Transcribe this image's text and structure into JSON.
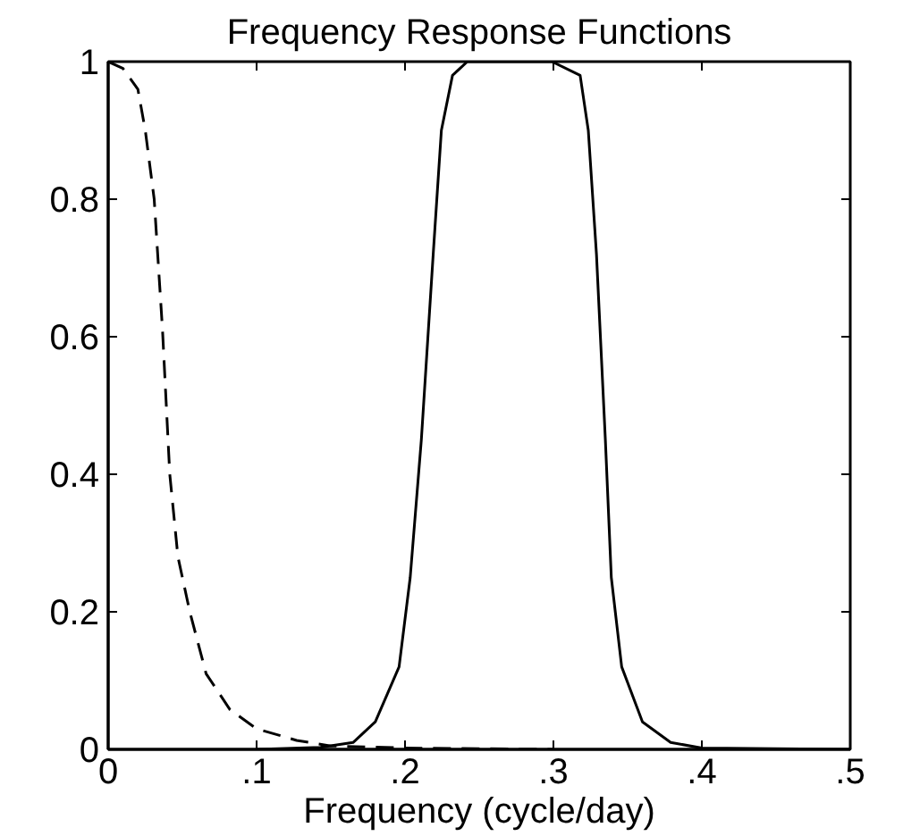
{
  "chart_data": {
    "type": "line",
    "title": "Frequency Response Functions",
    "xlabel": "Frequency (cycle/day)",
    "xlim": [
      0,
      0.5
    ],
    "ylim": [
      0,
      1
    ],
    "xticks": [
      0,
      {
        "value": 0.1,
        "label": ".1"
      },
      {
        "value": 0.2,
        "label": ".2"
      },
      {
        "value": 0.3,
        "label": ".3"
      },
      {
        "value": 0.4,
        "label": ".4"
      },
      {
        "value": 0.5,
        "label": ".5"
      }
    ],
    "yticks": [
      0,
      0.2,
      0.4,
      0.6,
      0.8,
      1
    ],
    "grid": false,
    "series": [
      {
        "color": "#000000",
        "line_style": "dashed",
        "x": [
          0,
          0.01,
          0.02,
          0.025,
          0.031,
          0.0366,
          0.0415,
          0.047,
          0.055,
          0.066,
          0.082,
          0.1,
          0.127,
          0.15,
          0.2,
          0.25,
          0.3
        ],
        "values": [
          1,
          0.99,
          0.96,
          0.9,
          0.8,
          0.61,
          0.4,
          0.28,
          0.2,
          0.11,
          0.058,
          0.03,
          0.013,
          0.005,
          0.002,
          0.001,
          0
        ]
      },
      {
        "color": "#000000",
        "line_style": "solid",
        "x": [
          0.1,
          0.143,
          0.165,
          0.18,
          0.196,
          0.2035,
          0.211,
          0.219,
          0.2245,
          0.232,
          0.242,
          0.299,
          0.318,
          0.3235,
          0.329,
          0.335,
          0.339,
          0.346,
          0.36,
          0.379,
          0.4,
          0.5
        ],
        "values": [
          0,
          0.003,
          0.01,
          0.04,
          0.12,
          0.25,
          0.45,
          0.72,
          0.9,
          0.98,
          1,
          1,
          0.98,
          0.9,
          0.72,
          0.45,
          0.25,
          0.12,
          0.04,
          0.01,
          0.002,
          0
        ]
      }
    ]
  }
}
